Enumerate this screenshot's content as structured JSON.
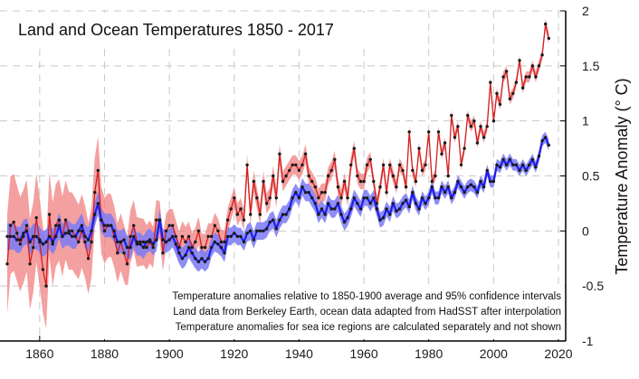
{
  "chart_data": {
    "type": "line",
    "title": "Land and Ocean Temperatures 1850 - 2017",
    "ylabel": "Temperature Anomaly (° C)",
    "xlabel": "",
    "xlim": [
      1850,
      2020
    ],
    "ylim": [
      -1,
      2
    ],
    "x_ticks": [
      1860,
      1880,
      1900,
      1920,
      1940,
      1960,
      1980,
      2000,
      2020
    ],
    "y_ticks": [
      -1,
      -0.5,
      0,
      0.5,
      1,
      1.5,
      2
    ],
    "y_tick_labels": [
      "-1",
      "-0.5",
      "0",
      "0.5",
      "1",
      "1.5",
      "2"
    ],
    "grid": true,
    "colors": {
      "land_line": "#d21e1e",
      "land_band": "#f08080",
      "ocean_line": "#1e1ee6",
      "ocean_band": "#7a7af5",
      "grid": "#c8c8c8",
      "background": "#ffffff"
    },
    "notes": [
      "Temperature anomalies relative to 1850-1900 average and 95% confidence intervals",
      "Land data from Berkeley Earth, ocean data adapted from HadSST after interpolation",
      "Temperature anomalies for sea ice regions are calculated separately and not shown"
    ],
    "series": [
      {
        "name": "Land",
        "start_year": 1850,
        "values": [
          -0.3,
          0.05,
          0.08,
          -0.02,
          -0.12,
          -0.05,
          0.05,
          -0.3,
          -0.15,
          0.12,
          -0.1,
          -0.35,
          -0.5,
          0.15,
          -0.12,
          0.05,
          0.1,
          -0.05,
          0.1,
          0.0,
          0.0,
          -0.05,
          -0.1,
          0.0,
          -0.1,
          -0.25,
          -0.1,
          0.35,
          0.55,
          0.1,
          0.0,
          0.05,
          0.05,
          -0.05,
          -0.2,
          -0.1,
          -0.2,
          -0.3,
          -0.05,
          0.05,
          -0.1,
          -0.1,
          -0.1,
          -0.15,
          -0.1,
          -0.15,
          0.1,
          0.1,
          -0.2,
          0.0,
          0.05,
          0.05,
          -0.05,
          -0.15,
          -0.05,
          -0.1,
          -0.05,
          -0.15,
          -0.1,
          0.0,
          -0.15,
          -0.15,
          -0.05,
          -0.05,
          0.05,
          0.0,
          -0.1,
          -0.1,
          0.1,
          0.2,
          0.3,
          0.15,
          0.2,
          0.1,
          0.6,
          0.15,
          0.45,
          0.3,
          0.15,
          0.45,
          0.25,
          0.3,
          0.5,
          0.3,
          0.7,
          0.45,
          0.5,
          0.55,
          0.6,
          0.6,
          0.55,
          0.6,
          0.7,
          0.5,
          0.45,
          0.4,
          0.3,
          0.35,
          0.35,
          0.5,
          0.55,
          0.65,
          0.4,
          0.3,
          0.45,
          0.3,
          0.6,
          0.75,
          0.5,
          0.45,
          0.45,
          0.6,
          0.65,
          0.45,
          0.25,
          0.4,
          0.6,
          0.35,
          0.6,
          0.5,
          0.4,
          0.6,
          0.55,
          0.4,
          0.9,
          0.55,
          0.45,
          0.75,
          0.55,
          0.6,
          0.9,
          0.45,
          0.5,
          0.9,
          0.7,
          0.8,
          0.5,
          1.05,
          0.85,
          0.95,
          0.6,
          0.75,
          1.05,
          0.95,
          1.0,
          0.8,
          0.95,
          0.85,
          0.95,
          1.35,
          1.0,
          1.25,
          1.15,
          1.4,
          1.45,
          1.2,
          1.25,
          1.35,
          1.55,
          1.3,
          1.4,
          1.4,
          1.5,
          1.4,
          1.5,
          1.6,
          1.88,
          1.75
        ]
      },
      {
        "name": "Ocean",
        "start_year": 1850,
        "values": [
          -0.05,
          -0.05,
          -0.05,
          -0.08,
          -0.08,
          -0.02,
          0.0,
          -0.1,
          -0.05,
          -0.05,
          -0.08,
          -0.12,
          -0.1,
          -0.05,
          -0.1,
          -0.05,
          0.05,
          -0.05,
          -0.02,
          -0.02,
          -0.05,
          -0.05,
          0.0,
          0.05,
          -0.05,
          -0.08,
          0.0,
          0.15,
          0.25,
          0.1,
          0.05,
          0.05,
          0.05,
          0.0,
          -0.1,
          -0.1,
          -0.08,
          -0.15,
          -0.15,
          -0.05,
          -0.12,
          -0.12,
          -0.15,
          -0.1,
          -0.08,
          -0.12,
          -0.08,
          0.1,
          -0.08,
          -0.1,
          -0.08,
          -0.05,
          -0.12,
          -0.2,
          -0.25,
          -0.22,
          -0.15,
          -0.2,
          -0.25,
          -0.28,
          -0.25,
          -0.28,
          -0.25,
          -0.15,
          -0.1,
          -0.12,
          -0.15,
          -0.2,
          -0.05,
          -0.05,
          -0.02,
          -0.05,
          -0.05,
          -0.1,
          -0.02,
          0.0,
          -0.08,
          0.0,
          0.0,
          0.0,
          0.02,
          0.08,
          0.1,
          0.02,
          0.1,
          0.15,
          0.15,
          0.2,
          0.3,
          0.35,
          0.3,
          0.4,
          0.35,
          0.35,
          0.3,
          0.25,
          0.15,
          0.2,
          0.15,
          0.25,
          0.2,
          0.2,
          0.25,
          0.15,
          0.08,
          0.12,
          0.2,
          0.3,
          0.25,
          0.2,
          0.3,
          0.3,
          0.25,
          0.3,
          0.2,
          0.1,
          0.12,
          0.2,
          0.15,
          0.25,
          0.18,
          0.2,
          0.25,
          0.28,
          0.22,
          0.35,
          0.25,
          0.2,
          0.3,
          0.25,
          0.3,
          0.4,
          0.3,
          0.3,
          0.4,
          0.35,
          0.4,
          0.3,
          0.35,
          0.45,
          0.4,
          0.35,
          0.4,
          0.42,
          0.4,
          0.35,
          0.45,
          0.4,
          0.55,
          0.45,
          0.45,
          0.6,
          0.58,
          0.65,
          0.6,
          0.65,
          0.6,
          0.6,
          0.55,
          0.6,
          0.55,
          0.6,
          0.65,
          0.58,
          0.68,
          0.82,
          0.85,
          0.78
        ]
      }
    ],
    "band_half_width": {
      "land": {
        "years": [
          1850,
          1860,
          1880,
          1900,
          1920,
          1950,
          1980,
          2017
        ],
        "values": [
          0.45,
          0.4,
          0.3,
          0.15,
          0.1,
          0.08,
          0.05,
          0.05
        ]
      },
      "ocean": {
        "years": [
          1850,
          1900,
          1920,
          1950,
          1980,
          2017
        ],
        "values": [
          0.12,
          0.1,
          0.08,
          0.08,
          0.06,
          0.05
        ]
      }
    }
  }
}
